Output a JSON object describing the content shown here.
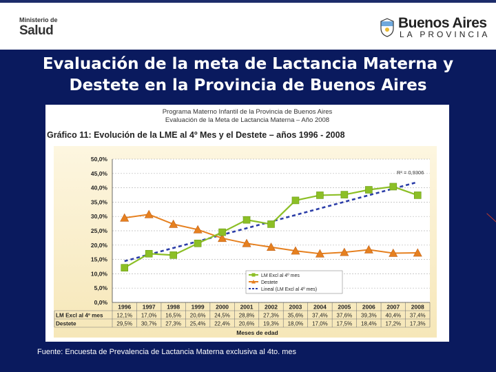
{
  "header": {
    "left_logo": {
      "top": "Ministerio de",
      "main": "Salud"
    },
    "right_logo": {
      "main": "Buenos Aires",
      "sub": "LA PROVINCIA"
    }
  },
  "slide": {
    "title_line1": "Evaluación  de la meta de Lactancia Materna y",
    "title_line2": "Destete en la Provincia de Buenos Aires",
    "source": "Fuente: Encuesta de Prevalencia de Lactancia Materna exclusiva al 4to. mes"
  },
  "panel": {
    "subtitle1": "Programa Materno Infantil de la Provincia de Buenos Aires",
    "subtitle2": "Evaluación de la Meta de Lactancia Materna – Año 2008"
  },
  "chart_data": {
    "type": "line",
    "title": "Gráfico 11: Evolución de la LME al 4º Mes y el Destete – años 1996 - 2008",
    "xlabel": "Meses de edad",
    "ylabel": "",
    "categories": [
      "1996",
      "1997",
      "1998",
      "1999",
      "2000",
      "2001",
      "2002",
      "2003",
      "2004",
      "2005",
      "2006",
      "2007",
      "2008"
    ],
    "ylim": [
      0,
      50
    ],
    "yticks": [
      "0,0%",
      "5,0%",
      "10,0%",
      "15,0%",
      "20,0%",
      "25,0%",
      "30,0%",
      "35,0%",
      "40,0%",
      "45,0%",
      "50,0%"
    ],
    "grid": true,
    "series": [
      {
        "name": "LM Excl al 4º mes",
        "color": "#8cbf26",
        "marker": "square",
        "values": [
          12.1,
          17.0,
          16.5,
          20.6,
          24.5,
          28.8,
          27.3,
          35.6,
          37.4,
          37.6,
          39.3,
          40.4,
          37.4
        ],
        "labels": [
          "12,1%",
          "17,0%",
          "16,5%",
          "20,6%",
          "24,5%",
          "28,8%",
          "27,3%",
          "35,6%",
          "37,4%",
          "37,6%",
          "39,3%",
          "40,4%",
          "37,4%"
        ]
      },
      {
        "name": "Destete",
        "color": "#e6801f",
        "marker": "triangle",
        "values": [
          29.5,
          30.7,
          27.3,
          25.4,
          22.4,
          20.6,
          19.3,
          18.0,
          17.0,
          17.5,
          18.4,
          17.2,
          17.3
        ],
        "labels": [
          "29,5%",
          "30,7%",
          "27,3%",
          "25,4%",
          "22,4%",
          "20,6%",
          "19,3%",
          "18,0%",
          "17,0%",
          "17,5%",
          "18,4%",
          "17,2%",
          "17,3%"
        ]
      },
      {
        "name": "Lineal (LM Excl al 4º mes)",
        "color": "#2b3da8",
        "dash": true,
        "values": [
          14.4,
          16.7,
          19.0,
          21.3,
          23.6,
          25.9,
          28.2,
          30.5,
          32.8,
          35.1,
          37.4,
          39.7,
          42.0
        ]
      }
    ],
    "table_row_labels": [
      "LM Excl al 4º mes",
      "Destete"
    ],
    "trend_annotation": "R² = 0,9306",
    "legend_position": "bottom-right"
  }
}
